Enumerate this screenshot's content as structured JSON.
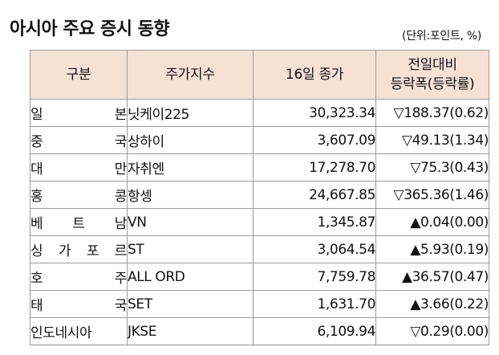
{
  "title": "아시아 주요 증시 동향",
  "unit": "(단위:포인트, %)",
  "headers": {
    "market": "구분",
    "index": "주가지수",
    "close": "16일 종가",
    "change_line1": "전일대비",
    "change_line2": "등락폭(등락률)"
  },
  "rows": [
    {
      "market": "일 본",
      "index": "닛케이225",
      "close": "30,323.34",
      "change": "▽188.37(0.62)"
    },
    {
      "market": "중 국",
      "index": "상하이",
      "close": "3,607.09",
      "change": "▽49.13(1.34)"
    },
    {
      "market": "대 만",
      "index": "자취엔",
      "close": "17,278.70",
      "change": "▽75.3(0.43)"
    },
    {
      "market": "홍 콩",
      "index": "항셍",
      "close": "24,667.85",
      "change": "▽365.36(1.46)"
    },
    {
      "market": "베 트 남",
      "index": "VN",
      "close": "1,345.87",
      "change": "▲0.04(0.00)"
    },
    {
      "market": "싱 가 포 르",
      "index": "ST",
      "close": "3,064.54",
      "change": "▲5.93(0.19)"
    },
    {
      "market": "호 주",
      "index": "ALL ORD",
      "close": "7,759.78",
      "change": "▲36.57(0.47)"
    },
    {
      "market": "태 국",
      "index": "SET",
      "close": "1,631.70",
      "change": "▲3.66(0.22)"
    },
    {
      "market": "인도네시아",
      "index": "JKSE",
      "close": "6,109.94",
      "change": "▽0.29(0.00)"
    }
  ],
  "colors": {
    "header_background": "#f6e1d5",
    "border": "#9a9a9a",
    "text": "#111111"
  }
}
